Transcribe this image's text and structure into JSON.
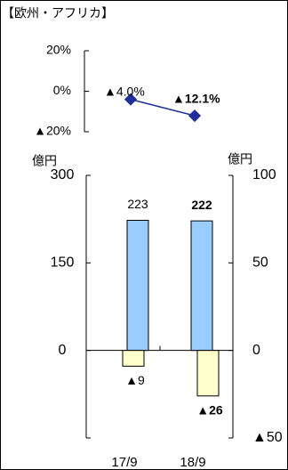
{
  "title": "【欧州・アフリカ】",
  "chart_data": [
    {
      "type": "line",
      "color": "#1f2f9a",
      "values": [
        -4.0,
        -12.1
      ],
      "value_labels": [
        "▲4.0%",
        "▲12.1%"
      ],
      "ylim": [
        -20,
        20
      ],
      "yticks": [
        {
          "value": 20,
          "label": "20%"
        },
        {
          "value": 0,
          "label": "0%"
        },
        {
          "value": -20,
          "label": "▲20%"
        }
      ]
    },
    {
      "type": "bar",
      "categories": [
        "17/9",
        "18/9"
      ],
      "ylabel": "億円",
      "y2label": "億円",
      "ylim": [
        -150,
        300
      ],
      "yticks": [
        0,
        150,
        300
      ],
      "y2lim": [
        -50,
        100
      ],
      "y2ticks": [
        {
          "value": -50,
          "label": "▲50"
        },
        0,
        50,
        100
      ],
      "series": [
        {
          "color": "#99ccff",
          "values": [
            223,
            222
          ]
        },
        {
          "color": "#ffffcc",
          "axis": "y2",
          "values": [
            -9,
            -26
          ],
          "value_labels": [
            "▲9",
            "▲26"
          ]
        }
      ]
    }
  ]
}
